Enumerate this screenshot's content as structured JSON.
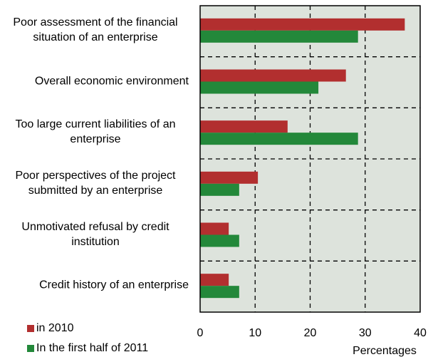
{
  "chart_data": {
    "type": "bar",
    "orientation": "horizontal",
    "categories": [
      "Poor assessment of the financial situation of an enterprise",
      "Overall economic environment",
      "Too large current liabilities of an enterprise",
      "Poor perspectives of the project submitted by an enterprise",
      "Unmotivated refusal by credit institution",
      "Credit history of an enterprise"
    ],
    "series": [
      {
        "name": "in 2010",
        "color": "#b22f2f",
        "values": [
          37.2,
          26.5,
          15.9,
          10.5,
          5.2,
          5.2
        ]
      },
      {
        "name": "In the first half of 2011",
        "color": "#23883a",
        "values": [
          28.7,
          21.5,
          28.7,
          7.1,
          7.1,
          7.1
        ]
      }
    ],
    "xlabel": "Percentages",
    "xlim": [
      0,
      40
    ],
    "xticks": [
      0,
      10,
      20,
      30,
      40
    ],
    "grid": true
  }
}
